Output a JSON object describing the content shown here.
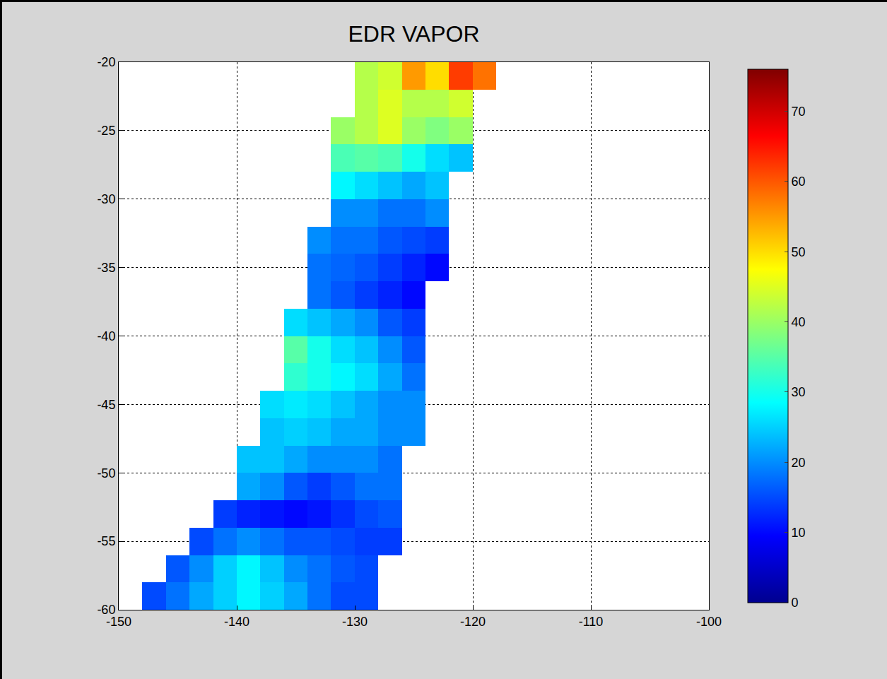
{
  "chart_data": {
    "type": "heatmap",
    "title": "EDR VAPOR",
    "x": [
      -149,
      -147,
      -145,
      -143,
      -141,
      -139,
      -137,
      -135,
      -133,
      -131,
      -129,
      -127,
      -125,
      -123,
      -121,
      -119
    ],
    "y": [
      -59,
      -57,
      -55,
      -53,
      -51,
      -49,
      -47,
      -45,
      -43,
      -41,
      -39,
      -37,
      -35,
      -33,
      -31,
      -29,
      -27,
      -25,
      -23,
      -21
    ],
    "z": [
      [
        null,
        15,
        18,
        22,
        25,
        28,
        25,
        22,
        18,
        15,
        15,
        null,
        null,
        null,
        null,
        null
      ],
      [
        null,
        null,
        16,
        20,
        25,
        28,
        24,
        20,
        18,
        16,
        15,
        null,
        null,
        null,
        null,
        null
      ],
      [
        null,
        null,
        null,
        15,
        18,
        20,
        18,
        16,
        16,
        15,
        14,
        14,
        null,
        null,
        null,
        null
      ],
      [
        null,
        null,
        null,
        null,
        14,
        12,
        11,
        10,
        11,
        13,
        15,
        16,
        null,
        null,
        null,
        null
      ],
      [
        null,
        null,
        null,
        null,
        null,
        22,
        20,
        16,
        14,
        16,
        18,
        18,
        null,
        null,
        null,
        null
      ],
      [
        null,
        null,
        null,
        null,
        null,
        24,
        24,
        22,
        20,
        20,
        20,
        18,
        null,
        null,
        null,
        null
      ],
      [
        null,
        null,
        null,
        null,
        null,
        null,
        24,
        25,
        24,
        22,
        22,
        20,
        20,
        null,
        null,
        null
      ],
      [
        null,
        null,
        null,
        null,
        null,
        null,
        26,
        27,
        26,
        24,
        22,
        20,
        20,
        null,
        null,
        null
      ],
      [
        null,
        null,
        null,
        null,
        null,
        null,
        null,
        32,
        30,
        28,
        26,
        22,
        18,
        null,
        null,
        null
      ],
      [
        null,
        null,
        null,
        null,
        null,
        null,
        null,
        35,
        30,
        26,
        24,
        20,
        16,
        null,
        null,
        null
      ],
      [
        null,
        null,
        null,
        null,
        null,
        null,
        null,
        26,
        24,
        22,
        20,
        16,
        14,
        null,
        null,
        null
      ],
      [
        null,
        null,
        null,
        null,
        null,
        null,
        null,
        null,
        18,
        16,
        14,
        12,
        10,
        null,
        null,
        null
      ],
      [
        null,
        null,
        null,
        null,
        null,
        null,
        null,
        null,
        18,
        17,
        16,
        14,
        12,
        10,
        null,
        null
      ],
      [
        null,
        null,
        null,
        null,
        null,
        null,
        null,
        null,
        20,
        18,
        18,
        16,
        15,
        14,
        null,
        null
      ],
      [
        null,
        null,
        null,
        null,
        null,
        null,
        null,
        null,
        null,
        20,
        20,
        18,
        18,
        20,
        null,
        null
      ],
      [
        null,
        null,
        null,
        null,
        null,
        null,
        null,
        null,
        null,
        28,
        26,
        24,
        22,
        24,
        null,
        null
      ],
      [
        null,
        null,
        null,
        null,
        null,
        null,
        null,
        null,
        null,
        34,
        35,
        34,
        30,
        26,
        24,
        null
      ],
      [
        null,
        null,
        null,
        null,
        null,
        null,
        null,
        null,
        null,
        40,
        42,
        45,
        40,
        38,
        40,
        null
      ],
      [
        null,
        null,
        null,
        null,
        null,
        null,
        null,
        null,
        null,
        null,
        42,
        45,
        42,
        42,
        44,
        null
      ],
      [
        null,
        null,
        null,
        null,
        null,
        null,
        null,
        null,
        null,
        null,
        42,
        44,
        55,
        50,
        62,
        58
      ]
    ],
    "xlim": [
      -150,
      -100
    ],
    "xticks": [
      -150,
      -140,
      -130,
      -120,
      -110,
      -100
    ],
    "ylim": [
      -60,
      -20
    ],
    "yticks": [
      -60,
      -55,
      -50,
      -45,
      -40,
      -35,
      -30,
      -25,
      -20
    ],
    "grid": true,
    "colorbar_range": [
      0,
      76
    ],
    "colorbar_ticks": [
      0,
      10,
      20,
      30,
      40,
      50,
      60,
      70
    ]
  }
}
